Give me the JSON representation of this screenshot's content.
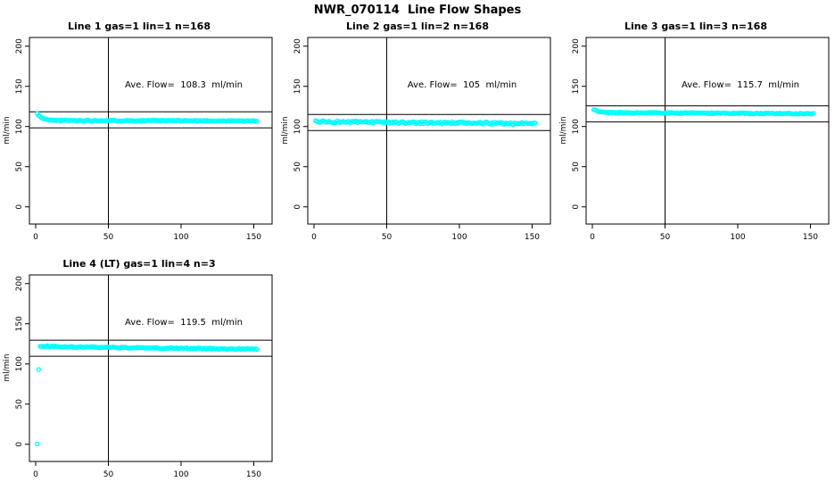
{
  "page": {
    "title": "NWR_070114  Line Flow Shapes"
  },
  "style": {
    "background": "#FFFFFF",
    "point_color": "#00FFFF",
    "axis_color": "#000000",
    "text_color": "#000000"
  },
  "axes": {
    "ylabel": "ml/min",
    "x_ticks": [
      0,
      50,
      100,
      150
    ],
    "y_ticks": [
      0,
      50,
      100,
      150,
      200
    ],
    "vline_x": 50,
    "xlim": [
      -4.3,
      162.6
    ],
    "ylim": [
      -21.4,
      210.8
    ],
    "grid": false
  },
  "chart_data": [
    {
      "type": "scatter",
      "panel": 0,
      "title": "Line 1 gas=1 lin=1 n=168",
      "annotation": "Ave. Flow=  108.3  ml/min",
      "ave_flow_ml_min": 108.3,
      "n": 168,
      "ref_lines": {
        "upper": 118.3,
        "lower": 98.3
      },
      "x_start": 1,
      "x_end": 152,
      "seed": 11,
      "noise": 0.6,
      "profile": [
        [
          1,
          116
        ],
        [
          2,
          113.5
        ],
        [
          4,
          111
        ],
        [
          6,
          109.3
        ],
        [
          9,
          108.2
        ],
        [
          15,
          107.6
        ],
        [
          40,
          107.4
        ],
        [
          80,
          107.3
        ],
        [
          120,
          107.1
        ],
        [
          152,
          106.9
        ]
      ],
      "outliers": []
    },
    {
      "type": "scatter",
      "panel": 1,
      "title": "Line 2 gas=1 lin=2 n=168",
      "annotation": "Ave. Flow=  105  ml/min",
      "ave_flow_ml_min": 105,
      "n": 168,
      "ref_lines": {
        "upper": 115,
        "lower": 95
      },
      "x_start": 1,
      "x_end": 152,
      "seed": 23,
      "noise": 1.3,
      "profile": [
        [
          1,
          106.4
        ],
        [
          10,
          105.9
        ],
        [
          40,
          105.3
        ],
        [
          80,
          104.7
        ],
        [
          120,
          104.1
        ],
        [
          152,
          103.7
        ]
      ],
      "outliers": []
    },
    {
      "type": "scatter",
      "panel": 2,
      "title": "Line 3 gas=1 lin=3 n=168",
      "annotation": "Ave. Flow=  115.7  ml/min",
      "ave_flow_ml_min": 115.7,
      "n": 168,
      "ref_lines": {
        "upper": 125.7,
        "lower": 105.7
      },
      "x_start": 1,
      "x_end": 152,
      "seed": 37,
      "noise": 0.7,
      "profile": [
        [
          1,
          121.5
        ],
        [
          2,
          120
        ],
        [
          4,
          118.5
        ],
        [
          8,
          117.6
        ],
        [
          20,
          117.2
        ],
        [
          60,
          116.8
        ],
        [
          100,
          116.4
        ],
        [
          152,
          116.0
        ]
      ],
      "outliers": []
    },
    {
      "type": "scatter",
      "panel": 3,
      "title": "Line 4 (LT) gas=1 lin=4 n=3",
      "annotation": "Ave. Flow=  119.5  ml/min",
      "ave_flow_ml_min": 119.5,
      "n": 3,
      "ref_lines": {
        "upper": 129.5,
        "lower": 109.5
      },
      "x_start": 3,
      "x_end": 152,
      "seed": 51,
      "noise": 0.7,
      "profile": [
        [
          3,
          122.3
        ],
        [
          10,
          121.8
        ],
        [
          30,
          121.0
        ],
        [
          60,
          120.3
        ],
        [
          90,
          119.6
        ],
        [
          120,
          119.0
        ],
        [
          152,
          118.4
        ]
      ],
      "outliers": [
        [
          1,
          0.3
        ],
        [
          2,
          93
        ]
      ]
    }
  ]
}
